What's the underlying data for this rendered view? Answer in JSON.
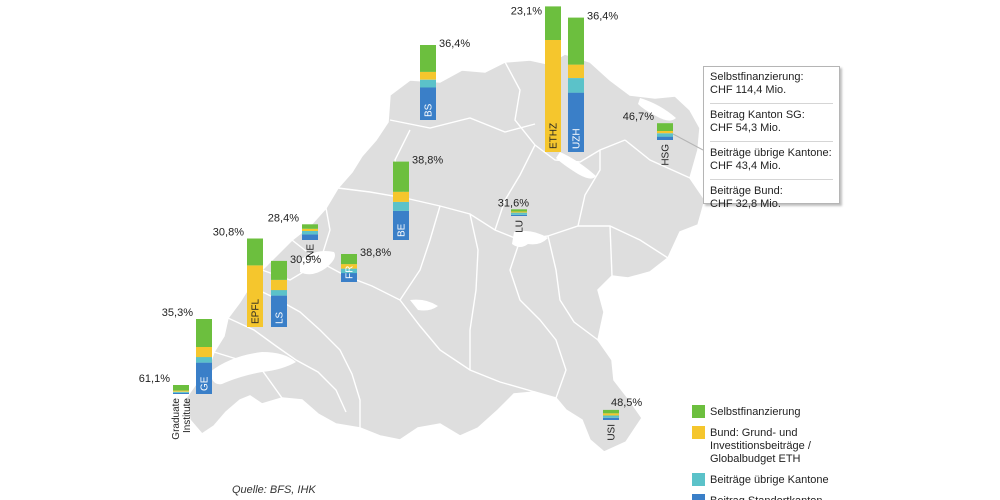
{
  "chart_data": {
    "type": "bar",
    "source": "Quelle: BFS, IHK",
    "colors": {
      "selbst": "#6cbf3e",
      "bund": "#f5c62d",
      "uebrige": "#5bc2c9",
      "standort": "#3a7fc8",
      "land": "#dedede",
      "border": "#ffffff"
    },
    "legend": [
      {
        "key": "selbst",
        "lines": [
          "Selbstfinanzierung"
        ]
      },
      {
        "key": "bund",
        "lines": [
          "Bund: Grund- und",
          "Investitionsbeiträge /",
          "Globalbudget ETH"
        ]
      },
      {
        "key": "uebrige",
        "lines": [
          "Beiträge übrige Kantone"
        ]
      },
      {
        "key": "standort",
        "lines": [
          "Beitrag Standortkanton"
        ]
      }
    ],
    "series_order": [
      "standort",
      "uebrige",
      "bund",
      "selbst"
    ],
    "universities": [
      {
        "label": "ETHZ",
        "selbst_pct": "23,1%",
        "values": {
          "selbst": 30,
          "bund": 100,
          "uebrige": 0,
          "standort": 0
        }
      },
      {
        "label": "UZH",
        "selbst_pct": "36,4%",
        "values": {
          "selbst": 42,
          "bund": 12,
          "uebrige": 13,
          "standort": 53
        }
      },
      {
        "label": "BS",
        "selbst_pct": "36,4%",
        "values": {
          "selbst": 24,
          "bund": 7,
          "uebrige": 7,
          "standort": 29
        }
      },
      {
        "label": "HSG",
        "selbst_pct": "46,7%",
        "values": {
          "selbst": 7,
          "bund": 2,
          "uebrige": 3,
          "standort": 3
        }
      },
      {
        "label": "BE",
        "selbst_pct": "38,8%",
        "values": {
          "selbst": 27,
          "bund": 9,
          "uebrige": 8,
          "standort": 26
        }
      },
      {
        "label": "LU",
        "selbst_pct": "31,6%",
        "values": {
          "selbst": 2,
          "bund": 1,
          "uebrige": 2,
          "standort": 1
        }
      },
      {
        "label": "NE",
        "selbst_pct": "28,4%",
        "values": {
          "selbst": 4,
          "bund": 2,
          "uebrige": 3,
          "standort": 5
        }
      },
      {
        "label": "FR",
        "selbst_pct": "38,8%",
        "values": {
          "selbst": 9,
          "bund": 4,
          "uebrige": 4,
          "standort": 8
        }
      },
      {
        "label": "EPFL",
        "selbst_pct": "30,8%",
        "values": {
          "selbst": 24,
          "bund": 55,
          "uebrige": 0,
          "standort": 0
        }
      },
      {
        "label": "LS",
        "selbst_pct": "30,9%",
        "values": {
          "selbst": 17,
          "bund": 9,
          "uebrige": 5,
          "standort": 28
        }
      },
      {
        "label": "GE",
        "selbst_pct": "35,3%",
        "values": {
          "selbst": 25,
          "bund": 9,
          "uebrige": 5,
          "standort": 28
        }
      },
      {
        "label": "Graduate Institute",
        "label_lines": [
          "Graduate",
          "Institute"
        ],
        "selbst_pct": "61,1%",
        "values": {
          "selbst": 5,
          "bund": 1,
          "uebrige": 1,
          "standort": 1
        }
      },
      {
        "label": "USI",
        "selbst_pct": "48,5%",
        "values": {
          "selbst": 3,
          "bund": 2,
          "uebrige": 2,
          "standort": 2
        }
      }
    ],
    "callout": [
      {
        "label": "Selbstfinanzierung:",
        "value": "CHF 114,4 Mio."
      },
      {
        "label": "Beitrag Kanton SG:",
        "value": "CHF 54,3 Mio."
      },
      {
        "label": "Beiträge übrige Kantone:",
        "value": "CHF 43,4 Mio."
      },
      {
        "label": "Beiträge Bund:",
        "value": "CHF 32,8 Mio."
      }
    ]
  }
}
